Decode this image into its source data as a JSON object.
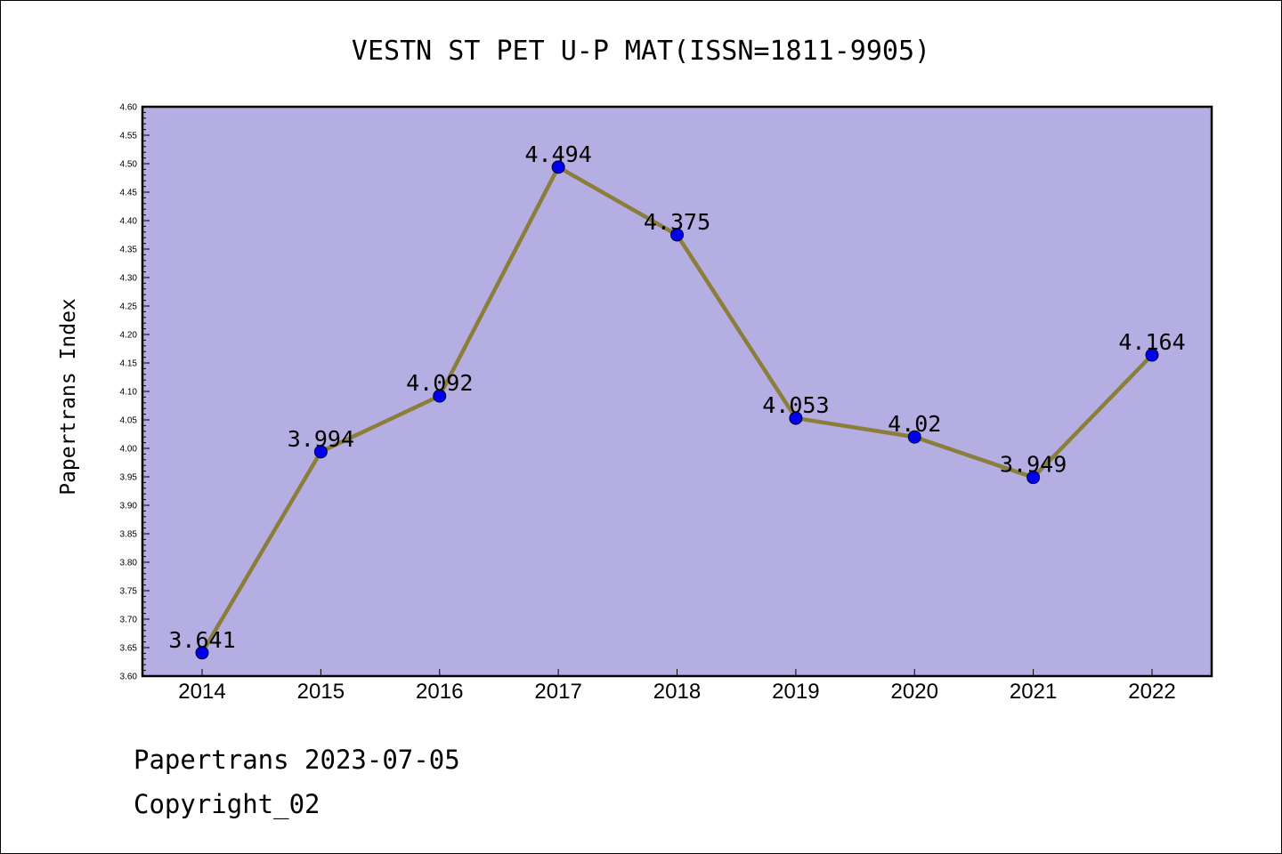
{
  "chart_data": {
    "type": "line",
    "title": "VESTN ST PET U-P MAT(ISSN=1811-9905)",
    "ylabel": "Papertrans Index",
    "xlabel": "",
    "categories": [
      "2014",
      "2015",
      "2016",
      "2017",
      "2018",
      "2019",
      "2020",
      "2021",
      "2022"
    ],
    "series": [
      {
        "values": [
          3.641,
          3.994,
          4.092,
          4.494,
          4.375,
          4.053,
          4.02,
          3.949,
          4.164
        ],
        "labels": [
          "3.641",
          "3.994",
          "4.092",
          "4.494",
          "4.375",
          "4.053",
          "4.02",
          "3.949",
          "4.164"
        ]
      }
    ],
    "ylim": [
      3.6,
      4.6
    ],
    "yticks": [
      "3.60",
      "3.65",
      "3.70",
      "3.75",
      "3.80",
      "3.85",
      "3.90",
      "3.95",
      "4.00",
      "4.05",
      "4.10",
      "4.15",
      "4.20",
      "4.25",
      "4.30",
      "4.35",
      "4.40",
      "4.45",
      "4.50",
      "4.55",
      "4.60"
    ],
    "grid": false,
    "legend": "none",
    "colors": {
      "plot_background": "#b5aee2",
      "line": "#8b7d3a",
      "marker": "#0000ee",
      "axis": "#000000"
    }
  },
  "footer": {
    "line1": "Papertrans 2023-07-05",
    "line2": "Copyright_02"
  }
}
